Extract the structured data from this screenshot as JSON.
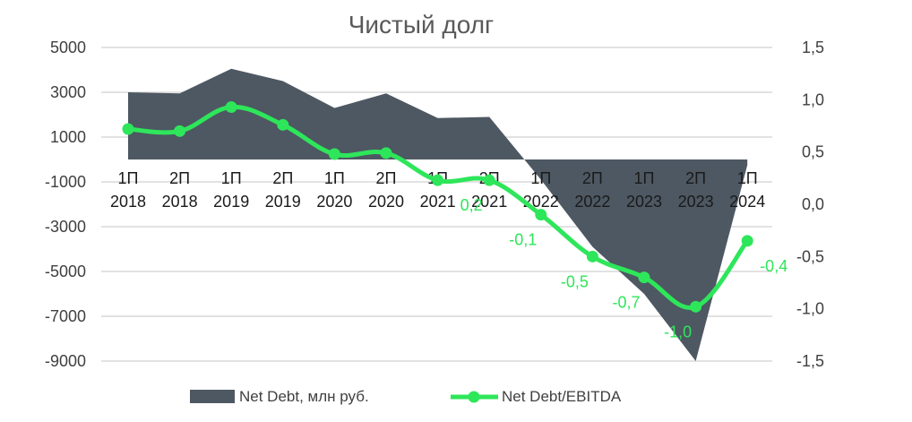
{
  "chart_data": {
    "type": "area+line",
    "title": "Чистый долг",
    "categories": [
      [
        "1П",
        "2018"
      ],
      [
        "2П",
        "2018"
      ],
      [
        "1П",
        "2019"
      ],
      [
        "2П",
        "2019"
      ],
      [
        "1П",
        "2020"
      ],
      [
        "2П",
        "2020"
      ],
      [
        "1П",
        "2021"
      ],
      [
        "2П",
        "2021"
      ],
      [
        "1П",
        "2022"
      ],
      [
        "2П",
        "2022"
      ],
      [
        "1П",
        "2023"
      ],
      [
        "2П",
        "2023"
      ],
      [
        "1П",
        "2024"
      ]
    ],
    "y_left": {
      "ticks": [
        "5000",
        "3000",
        "1000",
        "-1000",
        "-3000",
        "-5000",
        "-7000",
        "-9000"
      ],
      "ylim": [
        -9000,
        5000
      ]
    },
    "y_right": {
      "ticks": [
        "1,5",
        "1,0",
        "0,5",
        "0,0",
        "-0,5",
        "-1,0",
        "-1,5"
      ],
      "ylim": [
        -1.5,
        1.5
      ]
    },
    "grid": true,
    "legend_position": "bottom",
    "series": [
      {
        "name": "Net Debt, млн руб.",
        "type": "area",
        "axis": "left",
        "color": "#4d5862",
        "values": [
          3000,
          2950,
          4050,
          3500,
          2300,
          2950,
          1850,
          1900,
          -900,
          -3900,
          -6000,
          -9000,
          -250
        ]
      },
      {
        "name": "Net Debt/EBITDA",
        "type": "line",
        "axis": "right",
        "color": "#2ee65a",
        "values": [
          0.72,
          0.7,
          0.93,
          0.76,
          0.48,
          0.49,
          0.23,
          0.23,
          -0.1,
          -0.5,
          -0.7,
          -0.98,
          -0.35
        ],
        "data_labels": [
          "",
          "",
          "",
          "",
          "",
          "",
          "",
          "0,2",
          "-0,1",
          "-0,5",
          "-0,7",
          "-1,0",
          "-0,4"
        ]
      }
    ]
  }
}
